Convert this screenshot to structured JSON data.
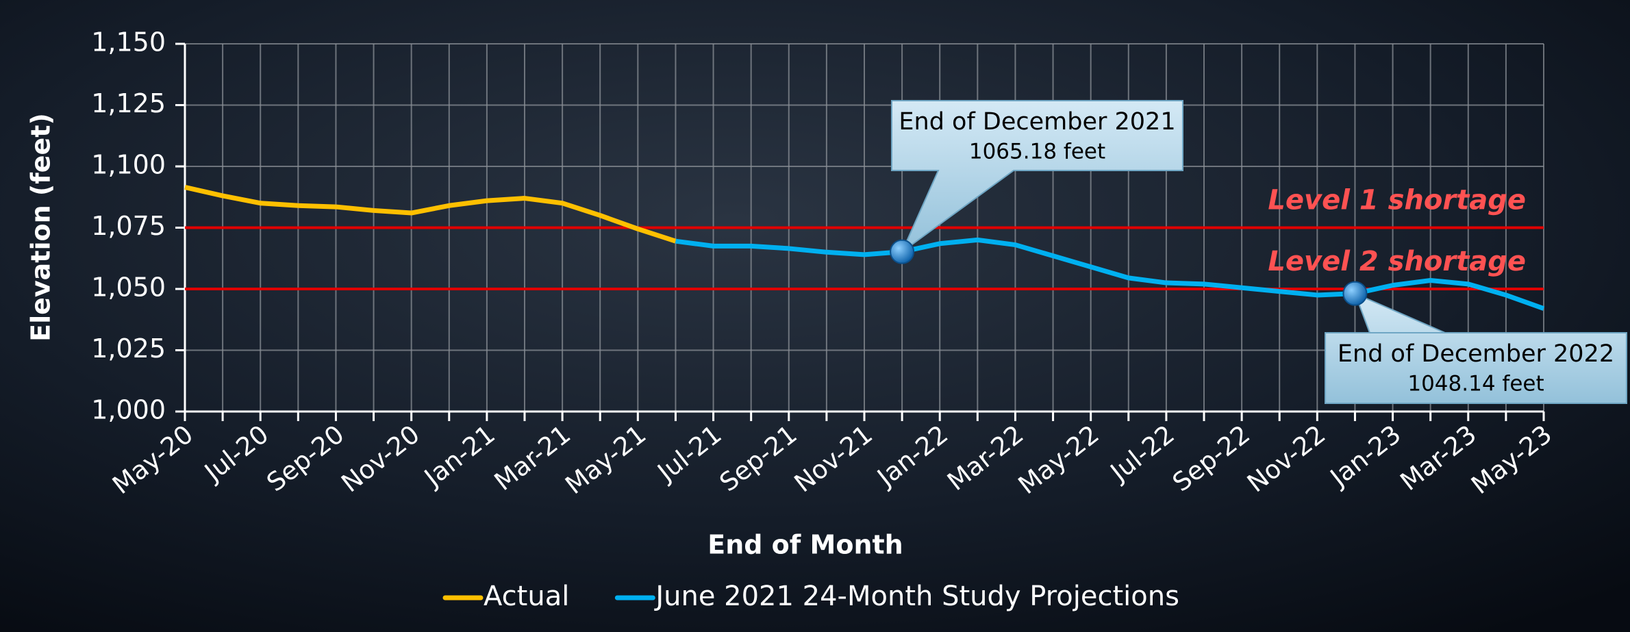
{
  "chart_data": {
    "type": "line",
    "xlabel": "End of Month",
    "ylabel": "Elevation (feet)",
    "categories": [
      "May-20",
      null,
      "Jul-20",
      null,
      "Sep-20",
      null,
      "Nov-20",
      null,
      "Jan-21",
      null,
      "Mar-21",
      null,
      "May-21",
      null,
      "Jul-21",
      null,
      "Sep-21",
      null,
      "Nov-21",
      null,
      "Jan-22",
      null,
      "Mar-22",
      null,
      "May-22",
      null,
      "Jul-22",
      null,
      "Sep-22",
      null,
      "Nov-22",
      null,
      "Jan-23",
      null,
      "Mar-23",
      null,
      "May-23"
    ],
    "series": [
      {
        "name": "Actual",
        "color": "#ffc000",
        "values": [
          1091.5,
          1088,
          1085,
          1084,
          1083.5,
          1082,
          1081,
          1084,
          1086,
          1087,
          1085,
          1080,
          1074.5,
          1069.5,
          null,
          null,
          null,
          null,
          null,
          null,
          null,
          null,
          null,
          null,
          null,
          null,
          null,
          null,
          null,
          null,
          null,
          null,
          null,
          null,
          null,
          null,
          null
        ]
      },
      {
        "name": "June 2021 24-Month Study Projections",
        "color": "#00b0f0",
        "values": [
          null,
          null,
          null,
          null,
          null,
          null,
          null,
          null,
          null,
          null,
          null,
          null,
          null,
          1069.5,
          1067.5,
          1067.5,
          1066.5,
          1065,
          1064,
          1065.18,
          1068.5,
          1070,
          1068,
          1063.5,
          1059,
          1054.5,
          1052.5,
          1052,
          1050.5,
          1049,
          1047.5,
          1048.14,
          1051.5,
          1053.5,
          1052,
          1047.5,
          1042
        ]
      }
    ],
    "ylim": [
      1000,
      1150
    ],
    "yticks": [
      {
        "value": 1000,
        "label": "1,000"
      },
      {
        "value": 1025,
        "label": "1,025"
      },
      {
        "value": 1050,
        "label": "1,050"
      },
      {
        "value": 1075,
        "label": "1,075"
      },
      {
        "value": 1100,
        "label": "1,100"
      },
      {
        "value": 1125,
        "label": "1,125"
      },
      {
        "value": 1150,
        "label": "1,150"
      }
    ],
    "grid": true,
    "reference_lines": [
      {
        "value": 1075,
        "label": "Level 1 shortage",
        "color": "#e00000"
      },
      {
        "value": 1050,
        "label": "Level 2 shortage",
        "color": "#e00000"
      }
    ],
    "annotations": [
      {
        "title": "End of December 2021",
        "value": 1065.18,
        "label": "1065.18 feet"
      },
      {
        "title": "End of December 2022",
        "value": 1048.14,
        "label": "1048.14 feet"
      }
    ],
    "legend": "bottom"
  }
}
